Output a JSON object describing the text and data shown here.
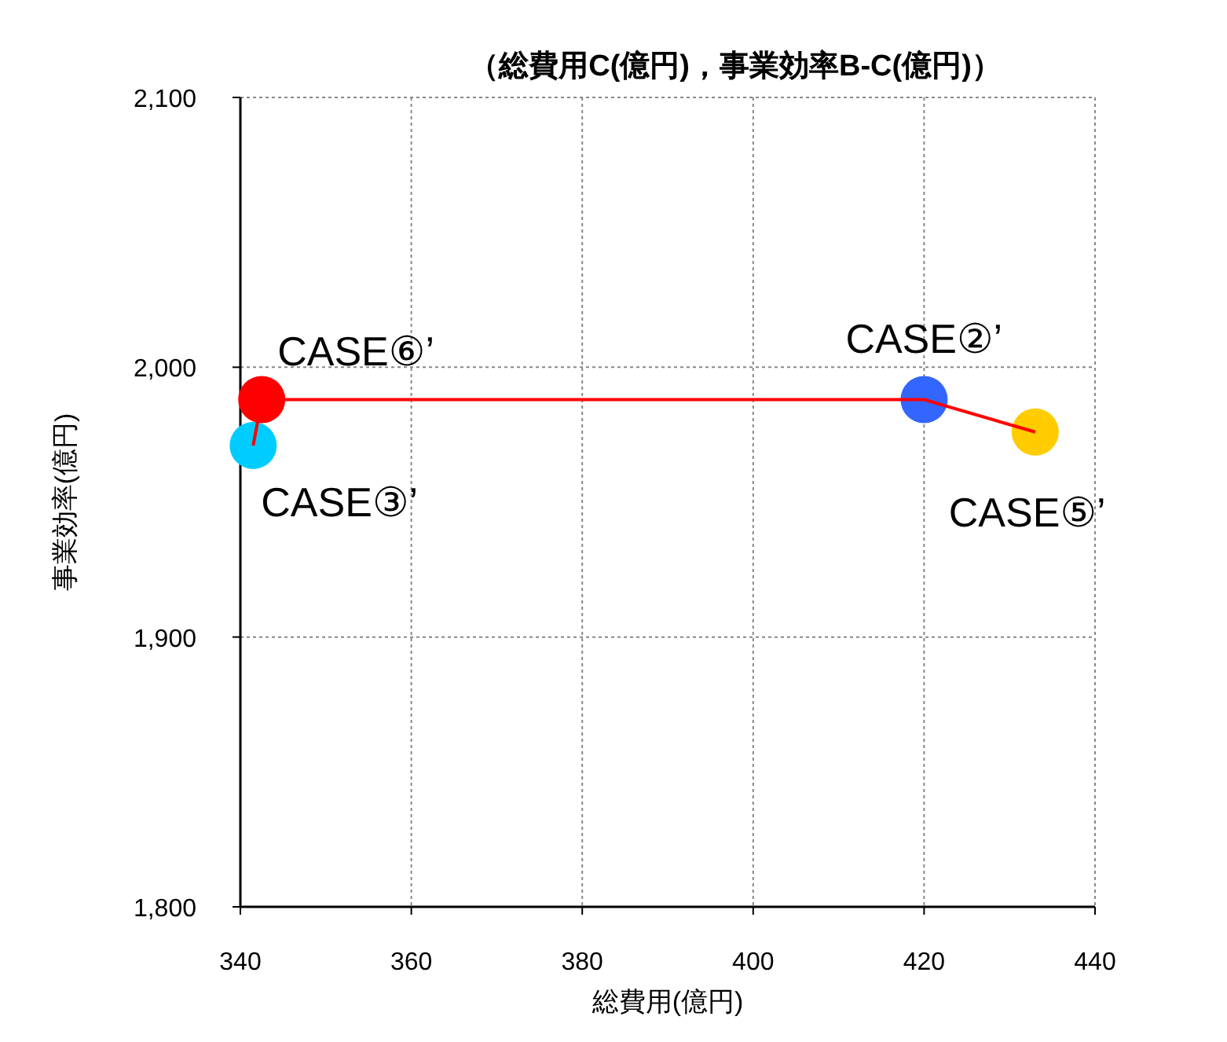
{
  "chart_data": {
    "type": "scatter",
    "title": "（総費用C(億円)，事業効率B-C(億円)）",
    "xlabel": "総費用(億円)",
    "ylabel": "事業効率(億円)",
    "xlim": [
      340,
      440
    ],
    "xticks": [
      340,
      360,
      380,
      400,
      420,
      440
    ],
    "ylim": [
      1800,
      2100
    ],
    "yticks": [
      {
        "value": 1800,
        "label": "1,800"
      },
      {
        "value": 1900,
        "label": "1,900"
      },
      {
        "value": 2000,
        "label": "2,000"
      },
      {
        "value": 2100,
        "label": "2,100"
      }
    ],
    "grid": true,
    "series": [
      {
        "type": "line",
        "color": "#ff0000",
        "x": [
          341.5,
          342.5,
          420,
          433
        ],
        "values": [
          1971,
          1988,
          1988,
          1976
        ]
      },
      {
        "marker": "circle",
        "colors": [
          "#00ccff",
          "#ff0000",
          "#3366ff",
          "#ffcc00"
        ],
        "x": [
          341.5,
          342.5,
          420,
          433
        ],
        "values": [
          1971,
          1988,
          1988,
          1976
        ]
      }
    ],
    "annotations": [
      {
        "text": "CASE③’",
        "x": 341.5,
        "y": 1971
      },
      {
        "text": "CASE⑥’",
        "x": 342.5,
        "y": 1988
      },
      {
        "text": "CASE②’",
        "x": 420,
        "y": 1988
      },
      {
        "text": "CASE⑤’",
        "x": 433,
        "y": 1976
      }
    ]
  }
}
